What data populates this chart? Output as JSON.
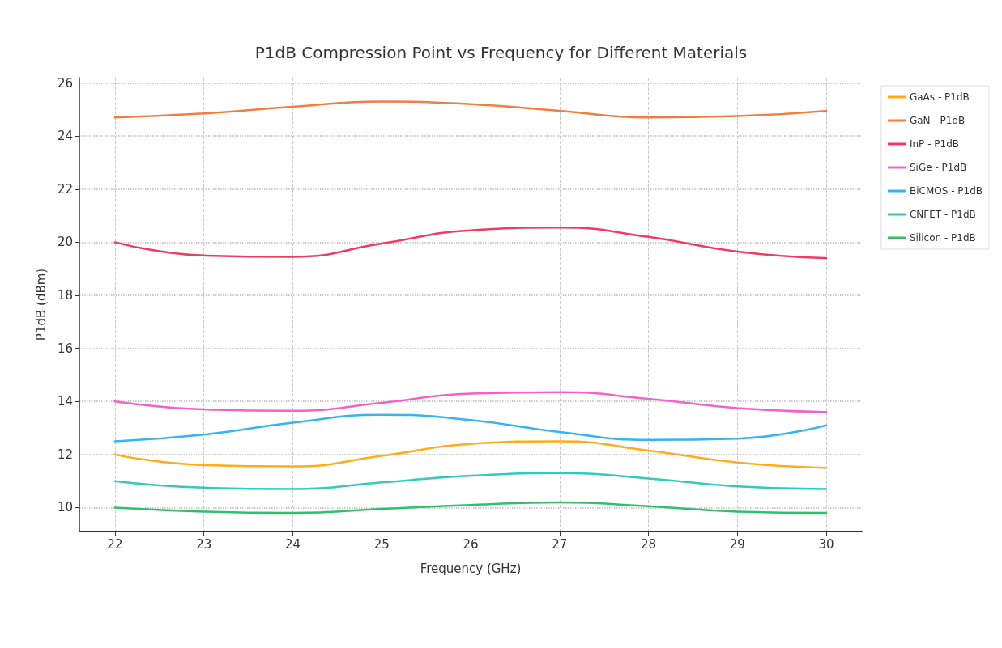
{
  "chart_data": {
    "type": "line",
    "title": "P1dB Compression Point vs Frequency for Different Materials",
    "xlabel": "Frequency (GHz)",
    "ylabel": "P1dB (dBm)",
    "x": [
      22,
      23,
      24,
      25,
      26,
      27,
      28,
      29,
      30
    ],
    "series": [
      {
        "name": "GaAs - P1dB",
        "color": "#ffab1a",
        "values": [
          12,
          11.6,
          11.55,
          11.95,
          12.4,
          12.5,
          12.15,
          11.7,
          11.5
        ]
      },
      {
        "name": "GaN - P1dB",
        "color": "#f57c3f",
        "values": [
          24.7,
          24.85,
          25.1,
          25.3,
          25.2,
          24.95,
          24.7,
          24.75,
          24.95
        ]
      },
      {
        "name": "InP - P1dB",
        "color": "#f03a62",
        "values": [
          20,
          19.5,
          19.45,
          19.95,
          20.45,
          20.55,
          20.2,
          19.65,
          19.4
        ]
      },
      {
        "name": "SiGe - P1dB",
        "color": "#f462c8",
        "values": [
          14,
          13.7,
          13.65,
          13.95,
          14.3,
          14.35,
          14.1,
          13.75,
          13.6
        ]
      },
      {
        "name": "BiCMOS - P1dB",
        "color": "#35b4f4",
        "values": [
          12.5,
          12.75,
          13.2,
          13.5,
          13.3,
          12.85,
          12.55,
          12.6,
          13.1
        ]
      },
      {
        "name": "CNFET - P1dB",
        "color": "#33c9bb",
        "values": [
          11,
          10.75,
          10.7,
          10.95,
          11.2,
          11.3,
          11.1,
          10.8,
          10.7
        ]
      },
      {
        "name": "Silicon - P1dB",
        "color": "#30bf6f",
        "values": [
          10,
          9.85,
          9.8,
          9.95,
          10.1,
          10.2,
          10.05,
          9.85,
          9.8
        ]
      }
    ],
    "xlim": [
      21.6,
      30.4
    ],
    "xticks": [
      22,
      23,
      24,
      25,
      26,
      27,
      28,
      29,
      30
    ],
    "ylim": [
      9.1,
      26.2
    ],
    "yticks": [
      10,
      12,
      14,
      16,
      18,
      20,
      22,
      24,
      26
    ],
    "grid": true,
    "legend": "top right",
    "marker": "none",
    "line_style": "solid"
  }
}
